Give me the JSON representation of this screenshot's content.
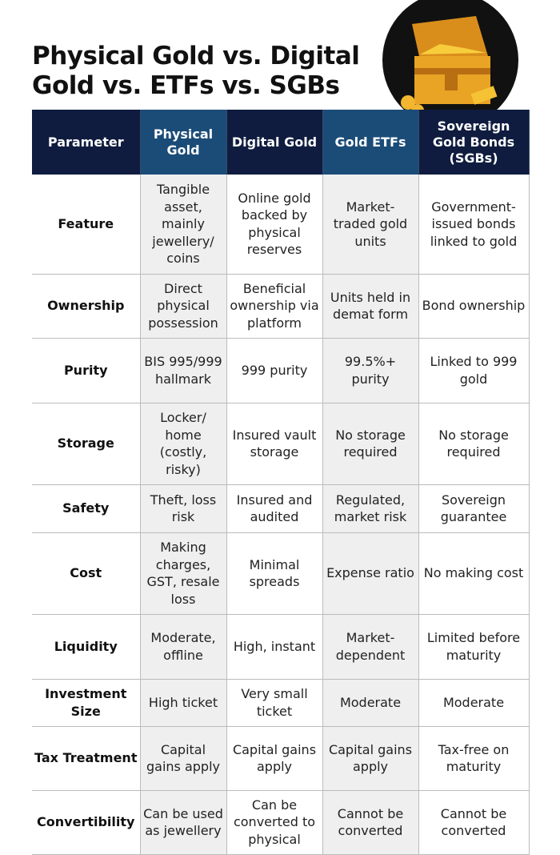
{
  "header": {
    "title_lines": [
      "Physical Gold vs. Digital",
      "Gold vs. ETFs vs. SGBs"
    ]
  },
  "table": {
    "columns": [
      "Parameter",
      "Physical Gold",
      "Digital Gold",
      "Gold ETFs",
      "Sovereign Gold Bonds (SGBs)"
    ],
    "rows": [
      [
        "Feature",
        "Tangible asset, mainly jewellery/ coins",
        "Online gold backed by physical reserves",
        "Market-traded gold units",
        "Government-issued bonds linked to gold"
      ],
      [
        "Ownership",
        "Direct physical possession",
        "Beneficial ownership via platform",
        "Units held in demat form",
        "Bond ownership"
      ],
      [
        "Purity",
        "BIS 995/999 hallmark",
        "999 purity",
        "99.5%+ purity",
        "Linked to 999 gold"
      ],
      [
        "Storage",
        "Locker/ home (costly, risky)",
        "Insured vault storage",
        "No storage required",
        "No storage required"
      ],
      [
        "Safety",
        "Theft, loss risk",
        "Insured and audited",
        "Regulated, market risk",
        "Sovereign guarantee"
      ],
      [
        "Cost",
        "Making charges, GST, resale loss",
        "Minimal spreads",
        "Expense ratio",
        "No making cost"
      ],
      [
        "Liquidity",
        "Moderate, offline",
        "High, instant",
        "Market-dependent",
        "Limited before maturity"
      ],
      [
        "Investment Size",
        "High ticket",
        "Very small ticket",
        "Moderate",
        "Moderate"
      ],
      [
        "Tax Treatment",
        "Capital gains apply",
        "Capital gains apply",
        "Capital gains apply",
        "Tax-free on maturity"
      ],
      [
        "Convertibility",
        "Can be used as jewellery",
        "Can be converted to physical",
        "Cannot be converted",
        "Cannot be converted"
      ]
    ]
  }
}
